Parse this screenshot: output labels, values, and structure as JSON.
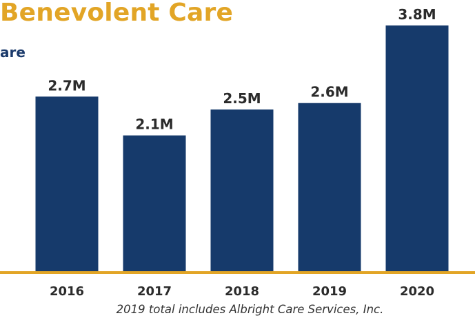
{
  "header": {
    "title": "Benevolent Care",
    "subtitle_fragment": "are"
  },
  "chart_data": {
    "type": "bar",
    "categories": [
      "2016",
      "2017",
      "2018",
      "2019",
      "2020"
    ],
    "values": [
      2.7,
      2.1,
      2.5,
      2.6,
      3.8
    ],
    "data_labels": [
      "2.7M",
      "2.1M",
      "2.5M",
      "2.6M",
      "3.8M"
    ],
    "ylim": [
      0,
      3.8
    ],
    "grid": false,
    "legend": "none",
    "bar_color": "#163a6b",
    "axis_color": "#e2a526",
    "title_color": "#e2a526"
  },
  "footnote": "2019 total includes Albright Care Services, Inc."
}
